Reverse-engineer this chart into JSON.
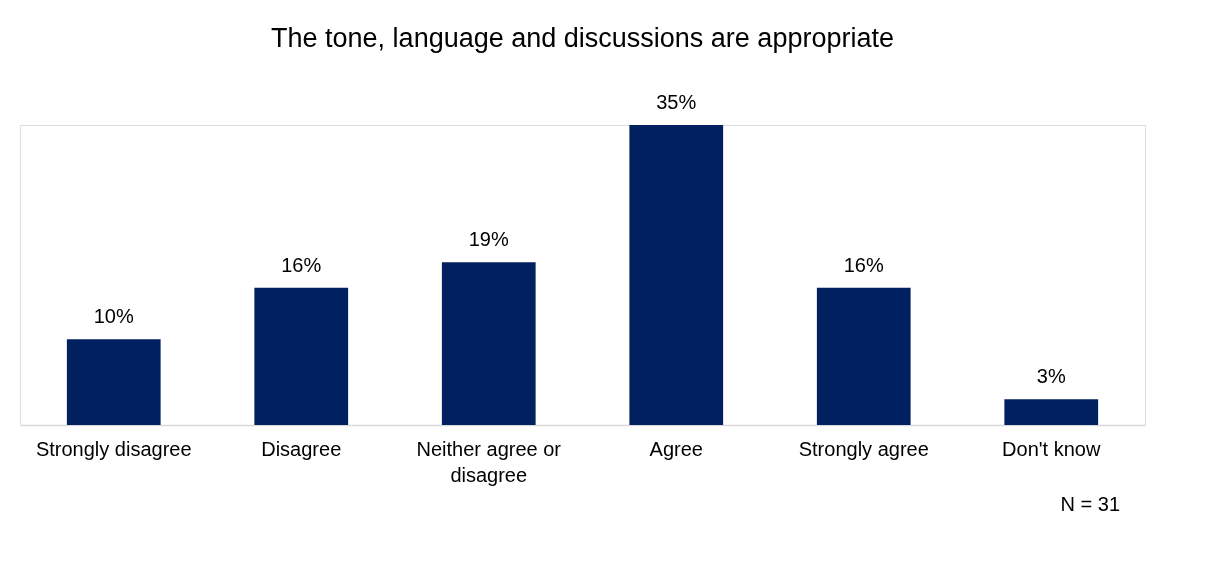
{
  "chart_data": {
    "type": "bar",
    "title": "The tone, language and discussions are appropriate",
    "categories": [
      "Strongly disagree",
      "Disagree",
      "Neither agree or disagree",
      "Agree",
      "Strongly agree",
      "Don't know"
    ],
    "values": [
      10,
      16,
      19,
      35,
      16,
      3
    ],
    "value_labels": [
      "10%",
      "16%",
      "19%",
      "35%",
      "16%",
      "3%"
    ],
    "color": "#002060",
    "grid": false,
    "annotations": [
      "N = 31"
    ]
  }
}
